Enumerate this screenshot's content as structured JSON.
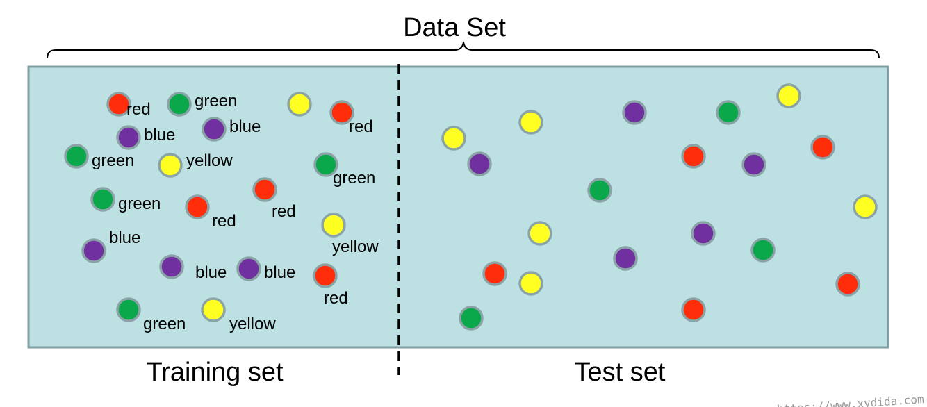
{
  "title": "Data Set",
  "training_label": "Training set",
  "test_label": "Test set",
  "watermark": "https://www.xydida.com",
  "colors": {
    "red": "#ff2d0a",
    "green": "#0aa84a",
    "blue": "#7030a0",
    "yellow": "#ffff22",
    "panel": "#bde0e3",
    "panel_border": "#7f9fa3"
  },
  "training_points": [
    {
      "color": "red",
      "label": "red"
    },
    {
      "color": "green",
      "label": "green"
    },
    {
      "color": "yellow",
      "label": ""
    },
    {
      "color": "red",
      "label": "red"
    },
    {
      "color": "blue",
      "label": "blue"
    },
    {
      "color": "blue",
      "label": "blue"
    },
    {
      "color": "green",
      "label": "green"
    },
    {
      "color": "yellow",
      "label": "yellow"
    },
    {
      "color": "green",
      "label": "green"
    },
    {
      "color": "red",
      "label": "red"
    },
    {
      "color": "green",
      "label": "green"
    },
    {
      "color": "red",
      "label": "red"
    },
    {
      "color": "yellow",
      "label": "yellow"
    },
    {
      "color": "blue",
      "label": "blue"
    },
    {
      "color": "blue",
      "label": "blue"
    },
    {
      "color": "blue",
      "label": "blue"
    },
    {
      "color": "red",
      "label": "red"
    },
    {
      "color": "green",
      "label": "green"
    },
    {
      "color": "yellow",
      "label": "yellow"
    }
  ],
  "test_points": [
    {
      "color": "yellow"
    },
    {
      "color": "yellow"
    },
    {
      "color": "blue"
    },
    {
      "color": "blue"
    },
    {
      "color": "green"
    },
    {
      "color": "yellow"
    },
    {
      "color": "red"
    },
    {
      "color": "blue"
    },
    {
      "color": "green"
    },
    {
      "color": "yellow"
    },
    {
      "color": "red"
    },
    {
      "color": "yellow"
    },
    {
      "color": "blue"
    },
    {
      "color": "green"
    },
    {
      "color": "blue"
    },
    {
      "color": "red"
    },
    {
      "color": "green"
    },
    {
      "color": "yellow"
    },
    {
      "color": "red"
    },
    {
      "color": "red"
    }
  ]
}
